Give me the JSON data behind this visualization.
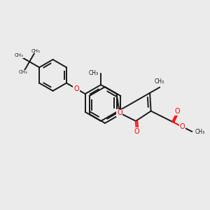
{
  "bg_color": "#ebebeb",
  "bond_color": "#1a1a1a",
  "o_color": "#ff0000",
  "lw": 1.4,
  "figsize": [
    3.0,
    3.0
  ],
  "dpi": 100,
  "xlim": [
    0.0,
    10.0
  ],
  "ylim": [
    1.5,
    8.5
  ]
}
